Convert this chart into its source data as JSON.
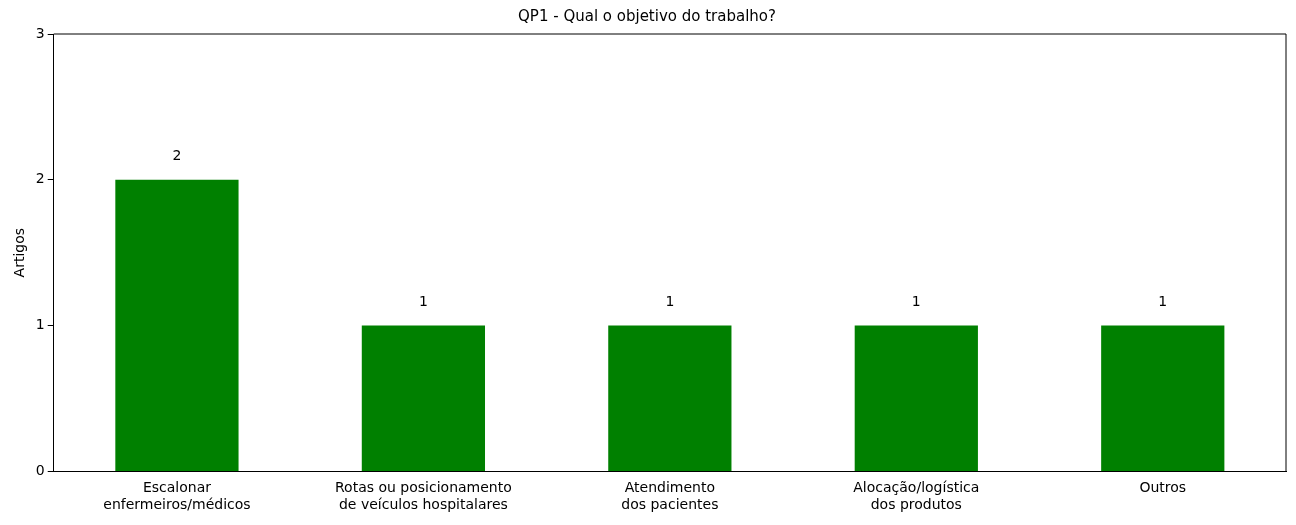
{
  "chart_data": {
    "type": "bar",
    "title": "QP1 - Qual o objetivo do trabalho?",
    "ylabel": "Artigos",
    "categories": [
      "Escalonar\nenfermeiros/médicos",
      "Rotas ou posicionamento\nde veículos hospitalares",
      "Atendimento\ndos pacientes",
      "Alocação/logística\ndos produtos",
      "Outros"
    ],
    "values": [
      2,
      1,
      1,
      1,
      1
    ],
    "color": "#008000",
    "ylim": [
      0,
      3
    ],
    "yticks": [
      0,
      1,
      2,
      3
    ],
    "grid": false,
    "legend": false,
    "data_labels": true
  }
}
